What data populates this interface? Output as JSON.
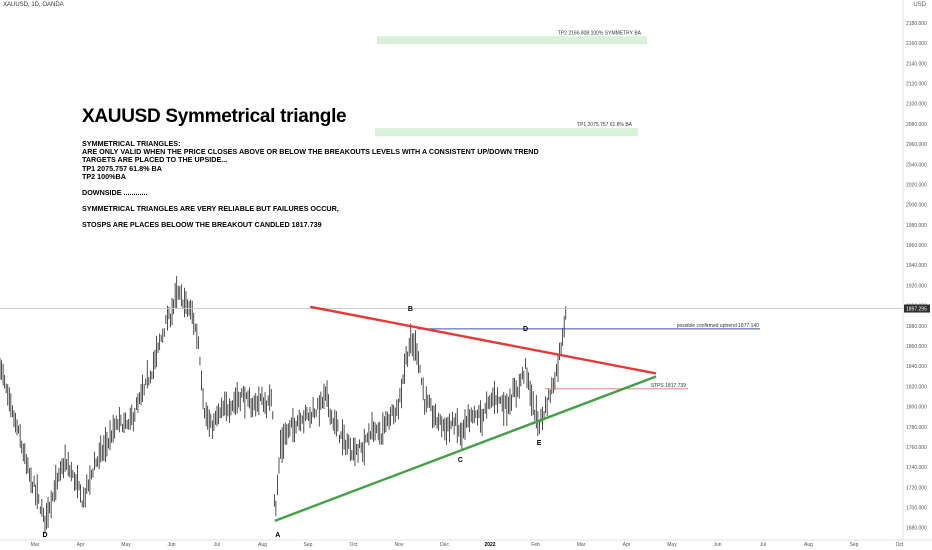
{
  "header": {
    "symbol": "XAUUSD, 1D, OANDA",
    "currency": "USD"
  },
  "chart_data": {
    "type": "candlestick",
    "symbol": "XAUUSD",
    "title": "XAUUSD  Symmetrical triangle",
    "notes": [
      "SYMMETRICAL TRIANGLES:",
      "ARE ONLY VALID WHEN THE PRICE CLOSES ABOVE OR BELOW THE BREAKOUTS LEVELS WITH A CONSISTENT  UP/DOWN TREND",
      "TARGETS ARE PLACED TO THE UPSIDE...",
      "TP1 2075.757  61.8% BA",
      "TP2 100%BA",
      "",
      "DOWNSIDE ............",
      "",
      "SYMMETRICAL TRIANGLES ARE VERY RELIABLE BUT FAILURES OCCUR,",
      "",
      "STOSPS ARE PLACES BELOOW THE  BREAKOUT CANDLED 1817.739"
    ],
    "x_ticks": [
      "Mar",
      "Apr",
      "May",
      "Jun",
      "Jul",
      "Aug",
      "Sep",
      "Oct",
      "Nov",
      "Dec",
      "2022",
      "Feb",
      "Mar",
      "Apr",
      "May",
      "Jun",
      "Jul",
      "Aug",
      "Sep",
      "Oct"
    ],
    "y_ticks": [
      2180,
      2160,
      2140,
      2120,
      2100,
      2080,
      2060,
      2040,
      2020,
      2000,
      1980,
      1960,
      1940,
      1920,
      1900,
      1880,
      1860,
      1840,
      1820,
      1800,
      1780,
      1760,
      1740,
      1720,
      1700,
      1680
    ],
    "ylim": [
      1670,
      2195
    ],
    "last_price": "1897.295",
    "targets": [
      {
        "label": "TP2  2166.808 100% SYMMETRY BA",
        "price": 2163
      },
      {
        "label": "TP1  2075.757 61.8%  BA",
        "price": 2072
      }
    ],
    "lines": [
      {
        "label": "possible confirmed uptrend 1877.140",
        "price": 1877.14,
        "color": "#3f51b5"
      },
      {
        "label": "STPS 1817.739",
        "price": 1817.739,
        "color": "#e57373"
      }
    ],
    "points": [
      {
        "label": "D",
        "month": 0.22,
        "price": 1683
      },
      {
        "label": "A",
        "month": 5.27,
        "price": 1683
      },
      {
        "label": "B",
        "month": 8.25,
        "price": 1886
      },
      {
        "label": "C",
        "month": 9.35,
        "price": 1757
      },
      {
        "label": "D",
        "month": 10.78,
        "price": 1866
      },
      {
        "label": "E",
        "month": 11.08,
        "price": 1774
      }
    ],
    "trendlines": [
      {
        "name": "resistance",
        "from": [
          6.05,
          1899
        ],
        "to": [
          13.65,
          1833
        ],
        "color": "#e53935"
      },
      {
        "name": "support",
        "from": [
          5.27,
          1687
        ],
        "to": [
          13.65,
          1830
        ],
        "color": "#43a047"
      }
    ],
    "price_path": [
      [
        -0.8,
        1848
      ],
      [
        -0.55,
        1800
      ],
      [
        -0.35,
        1772
      ],
      [
        -0.15,
        1735
      ],
      [
        0.05,
        1712
      ],
      [
        0.2,
        1688
      ],
      [
        0.45,
        1720
      ],
      [
        0.65,
        1745
      ],
      [
        0.9,
        1726
      ],
      [
        1.05,
        1706
      ],
      [
        1.3,
        1742
      ],
      [
        1.6,
        1765
      ],
      [
        1.85,
        1785
      ],
      [
        2.05,
        1780
      ],
      [
        2.3,
        1805
      ],
      [
        2.6,
        1840
      ],
      [
        2.85,
        1880
      ],
      [
        3.0,
        1892
      ],
      [
        3.1,
        1912
      ],
      [
        3.25,
        1906
      ],
      [
        3.45,
        1892
      ],
      [
        3.6,
        1862
      ],
      [
        3.72,
        1798
      ],
      [
        3.85,
        1778
      ],
      [
        4.05,
        1792
      ],
      [
        4.3,
        1802
      ],
      [
        4.55,
        1812
      ],
      [
        4.75,
        1800
      ],
      [
        4.95,
        1808
      ],
      [
        5.1,
        1800
      ],
      [
        5.22,
        1812
      ],
      [
        5.27,
        1688
      ],
      [
        5.4,
        1762
      ],
      [
        5.6,
        1778
      ],
      [
        5.85,
        1790
      ],
      [
        6.05,
        1792
      ],
      [
        6.25,
        1800
      ],
      [
        6.4,
        1812
      ],
      [
        6.55,
        1786
      ],
      [
        6.75,
        1768
      ],
      [
        6.95,
        1758
      ],
      [
        7.2,
        1758
      ],
      [
        7.4,
        1778
      ],
      [
        7.6,
        1772
      ],
      [
        7.8,
        1792
      ],
      [
        8.0,
        1802
      ],
      [
        8.15,
        1848
      ],
      [
        8.25,
        1862
      ],
      [
        8.4,
        1858
      ],
      [
        8.55,
        1808
      ],
      [
        8.8,
        1788
      ],
      [
        9.05,
        1780
      ],
      [
        9.25,
        1784
      ],
      [
        9.35,
        1772
      ],
      [
        9.6,
        1790
      ],
      [
        9.85,
        1792
      ],
      [
        10.1,
        1812
      ],
      [
        10.35,
        1800
      ],
      [
        10.6,
        1818
      ],
      [
        10.78,
        1838
      ],
      [
        10.95,
        1800
      ],
      [
        11.08,
        1782
      ],
      [
        11.3,
        1810
      ],
      [
        11.45,
        1832
      ],
      [
        11.58,
        1866
      ],
      [
        11.68,
        1900
      ]
    ]
  }
}
